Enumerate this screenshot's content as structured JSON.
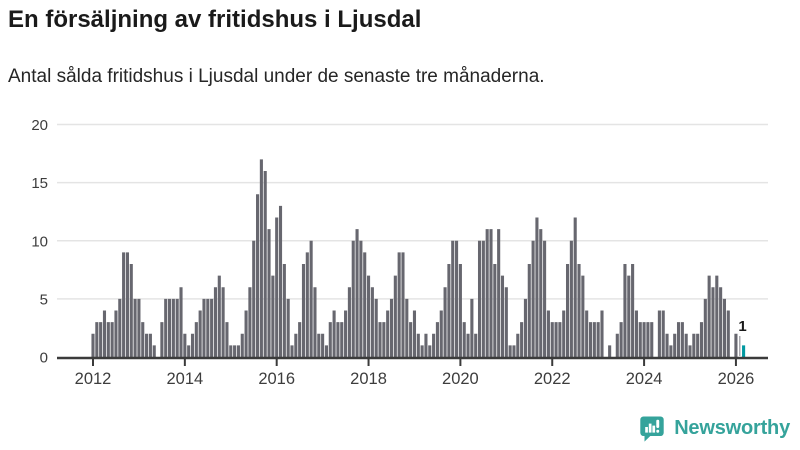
{
  "page": {
    "title": "En försäljning av fritidshus i Ljusdal",
    "subtitle": "Antal sålda fritidshus i Ljusdal under de senaste tre månaderna."
  },
  "annotation": {
    "last_value_label": "1"
  },
  "branding": {
    "name": "Newsworthy",
    "icon": "bar-chart-speech-bubble-icon"
  },
  "colors": {
    "bar": "#67676f",
    "highlight": "#0099a1",
    "brand": "#35a39b",
    "grid": "#e4e4e4",
    "axis": "#3b3b3b",
    "tick_text": "#3d3d3d",
    "title_text": "#1a1a1a",
    "subtitle_text": "#262626",
    "annotation_text": "#1a1a1a",
    "leader_line": "#9b9ba1"
  },
  "chart_data": {
    "type": "bar",
    "title": "En försäljning av fritidshus i Ljusdal",
    "subtitle": "Antal sålda fritidshus i Ljusdal under de senaste tre månaderna.",
    "frequency": "monthly",
    "start_month": "2012-01",
    "end_month": "2026-03",
    "x_tick_labels": [
      "2012",
      "2014",
      "2016",
      "2018",
      "2020",
      "2022",
      "2024",
      "2026"
    ],
    "y_ticks": [
      0,
      5,
      10,
      15,
      20
    ],
    "ylim": [
      0,
      20
    ],
    "grid": "horizontal",
    "legend": "none",
    "highlight_last_value": 1,
    "highlight_last_label": "1",
    "values": [
      2,
      3,
      3,
      4,
      3,
      3,
      4,
      5,
      9,
      9,
      8,
      5,
      5,
      3,
      2,
      2,
      1,
      0,
      3,
      5,
      5,
      5,
      5,
      6,
      2,
      1,
      2,
      3,
      4,
      5,
      5,
      5,
      6,
      7,
      6,
      3,
      1,
      1,
      1,
      2,
      4,
      6,
      10,
      14,
      17,
      16,
      11,
      7,
      12,
      13,
      8,
      5,
      1,
      2,
      3,
      8,
      9,
      10,
      6,
      2,
      2,
      1,
      3,
      4,
      3,
      3,
      4,
      6,
      10,
      11,
      10,
      9,
      7,
      6,
      5,
      3,
      3,
      4,
      5,
      7,
      9,
      9,
      5,
      3,
      4,
      2,
      1,
      2,
      1,
      2,
      3,
      4,
      6,
      8,
      10,
      10,
      8,
      3,
      2,
      5,
      2,
      10,
      10,
      11,
      11,
      8,
      11,
      7,
      6,
      1,
      1,
      2,
      3,
      5,
      8,
      10,
      12,
      11,
      10,
      4,
      3,
      3,
      3,
      4,
      8,
      10,
      12,
      8,
      7,
      4,
      3,
      3,
      3,
      4,
      0,
      1,
      0,
      2,
      3,
      8,
      7,
      8,
      4,
      3,
      3,
      3,
      3,
      0,
      4,
      4,
      2,
      1,
      2,
      3,
      3,
      2,
      1,
      2,
      2,
      3,
      5,
      7,
      6,
      7,
      6,
      5,
      4,
      0,
      2,
      0,
      1
    ]
  }
}
